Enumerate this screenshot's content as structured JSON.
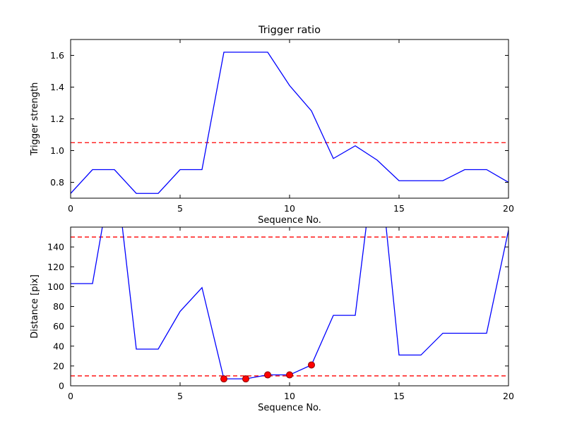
{
  "figure": {
    "background": "#ffffff",
    "axes_color": "#000000",
    "line_color": "#0000ff",
    "threshold_color": "#ff0000",
    "marker_color": "#ff0000"
  },
  "chart_data": [
    {
      "type": "line",
      "title": "Trigger ratio",
      "xlabel": "Sequence No.",
      "ylabel": "Trigger strength",
      "xlim": [
        0,
        20
      ],
      "ylim": [
        0.7,
        1.7
      ],
      "xtick_values": [
        0,
        5,
        10,
        15,
        20
      ],
      "xtick_labels": [
        "0",
        "5",
        "10",
        "15",
        "20"
      ],
      "ytick_values": [
        0.8,
        1.0,
        1.2,
        1.4,
        1.6
      ],
      "ytick_labels": [
        "0.8",
        "1.0",
        "1.2",
        "1.4",
        "1.6"
      ],
      "grid": false,
      "legend": null,
      "series": [
        {
          "name": "trigger-strength",
          "color": "#0000ff",
          "x": [
            0,
            1,
            2,
            3,
            4,
            5,
            6,
            7,
            8,
            9,
            10,
            11,
            12,
            13,
            14,
            15,
            16,
            17,
            18,
            19,
            20
          ],
          "y": [
            0.73,
            0.88,
            0.88,
            0.73,
            0.73,
            0.88,
            0.88,
            1.62,
            1.62,
            1.62,
            1.41,
            1.25,
            0.95,
            1.03,
            0.94,
            0.81,
            0.81,
            0.81,
            0.88,
            0.88,
            0.8
          ]
        }
      ],
      "hlines": [
        {
          "y": 1.05,
          "color": "#ff0000",
          "dash": "6,4",
          "name": "trigger-threshold"
        }
      ],
      "markers": []
    },
    {
      "type": "line",
      "title": "",
      "xlabel": "Sequence No.",
      "ylabel": "Distance [pix]",
      "xlim": [
        0,
        20
      ],
      "ylim": [
        0,
        160
      ],
      "xtick_values": [
        0,
        5,
        10,
        15,
        20
      ],
      "xtick_labels": [
        "0",
        "5",
        "10",
        "15",
        "20"
      ],
      "ytick_values": [
        0,
        20,
        40,
        60,
        80,
        100,
        120,
        140
      ],
      "ytick_labels": [
        "0",
        "20",
        "40",
        "60",
        "80",
        "100",
        "120",
        "140"
      ],
      "grid": false,
      "legend": null,
      "series": [
        {
          "name": "distance",
          "color": "#0000ff",
          "x": [
            0,
            1,
            2,
            3,
            4,
            5,
            6,
            7,
            8,
            9,
            10,
            11,
            12,
            13,
            14,
            15,
            16,
            17,
            18,
            19,
            20
          ],
          "y": [
            103,
            103,
            230,
            37,
            37,
            75,
            99,
            7,
            7,
            11,
            11,
            21,
            71,
            71,
            250,
            31,
            31,
            53,
            53,
            53,
            157
          ]
        }
      ],
      "hlines": [
        {
          "y": 150,
          "color": "#ff0000",
          "dash": "6,4",
          "name": "upper-distance-threshold"
        },
        {
          "y": 10,
          "color": "#ff0000",
          "dash": "6,4",
          "name": "lower-distance-threshold"
        }
      ],
      "markers": [
        {
          "name": "triggered-points",
          "color": "#ff0000",
          "edge": "#8b0000",
          "x": [
            7,
            8,
            9,
            10,
            11
          ],
          "y": [
            7,
            7,
            11,
            11,
            21
          ]
        }
      ]
    }
  ]
}
